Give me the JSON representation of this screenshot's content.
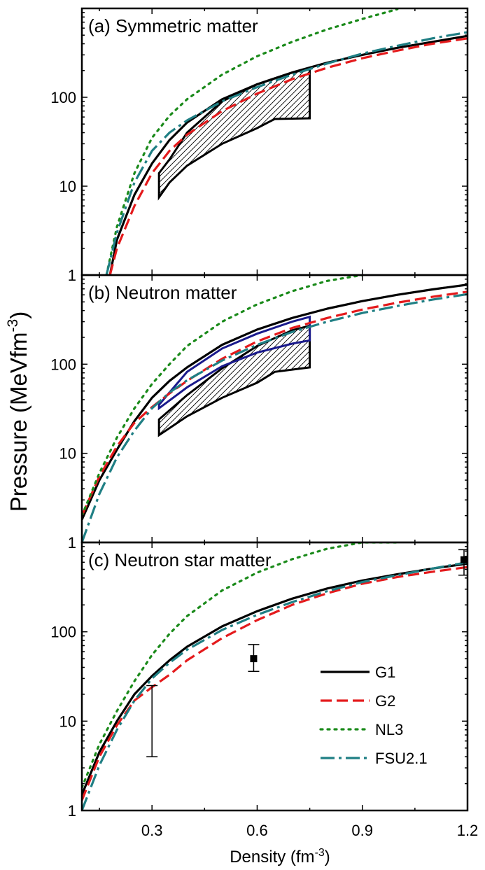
{
  "ylabel": "Pressure (MeVfm",
  "ylabel_sup": "-3",
  "ylabel_close": ")",
  "xlabel": "Density (fm",
  "xlabel_sup": "-3",
  "xlabel_close": ")",
  "legend": [
    "G1",
    "G2",
    "NL3",
    "FSU2.1"
  ],
  "colors": {
    "G1": "#000000",
    "G2": "#e41a1c",
    "NL3": "#1a8a1a",
    "FSU2.1": "#1f7f84",
    "constraint_blue": "#1a1a8c"
  },
  "chart_data": [
    {
      "type": "line",
      "title": "(a) Symmetric matter",
      "xlim": [
        0.1,
        1.2
      ],
      "ylim": [
        1,
        1000
      ],
      "yscale": "log",
      "xticks": [
        "0.3",
        "0.6",
        "0.9",
        "1.2"
      ],
      "yticks": [
        "1",
        "10",
        "100"
      ],
      "series": [
        {
          "name": "G1",
          "x": [
            0.18,
            0.2,
            0.25,
            0.3,
            0.35,
            0.4,
            0.5,
            0.6,
            0.7,
            0.8,
            0.9,
            1.0,
            1.1,
            1.2
          ],
          "y": [
            1,
            2.5,
            8,
            18,
            33,
            52,
            95,
            140,
            190,
            245,
            300,
            360,
            420,
            490
          ]
        },
        {
          "name": "G2",
          "x": [
            0.18,
            0.2,
            0.25,
            0.3,
            0.35,
            0.4,
            0.5,
            0.6,
            0.7,
            0.8,
            0.9,
            1.0,
            1.1,
            1.2
          ],
          "y": [
            1,
            2,
            6,
            14,
            25,
            38,
            70,
            110,
            160,
            215,
            275,
            335,
            400,
            460
          ]
        },
        {
          "name": "NL3",
          "x": [
            0.17,
            0.2,
            0.25,
            0.3,
            0.35,
            0.4,
            0.5,
            0.6,
            0.7,
            0.8,
            0.9,
            1.0
          ],
          "y": [
            1,
            3.5,
            14,
            35,
            62,
            95,
            180,
            290,
            420,
            580,
            760,
            980
          ]
        },
        {
          "name": "FSU2.1",
          "x": [
            0.17,
            0.2,
            0.25,
            0.3,
            0.35,
            0.4,
            0.5,
            0.6,
            0.7,
            0.8,
            0.9,
            1.0,
            1.1,
            1.2
          ],
          "y": [
            1,
            3,
            11,
            25,
            40,
            55,
            90,
            130,
            180,
            240,
            310,
            380,
            460,
            540
          ]
        }
      ],
      "constraint_region": {
        "upper": {
          "x": [
            0.32,
            0.35,
            0.4,
            0.5,
            0.6,
            0.7,
            0.75
          ],
          "y": [
            14,
            20,
            40,
            90,
            140,
            190,
            210
          ]
        },
        "lower": {
          "x": [
            0.32,
            0.35,
            0.4,
            0.5,
            0.6,
            0.65,
            0.75
          ],
          "y": [
            7.5,
            11,
            17,
            30,
            45,
            57,
            58
          ]
        }
      }
    },
    {
      "type": "line",
      "title": "(b) Neutron matter",
      "xlim": [
        0.1,
        1.2
      ],
      "ylim": [
        1,
        1000
      ],
      "yscale": "log",
      "xticks": [
        "0.3",
        "0.6",
        "0.9",
        "1.2"
      ],
      "yticks": [
        "1",
        "10",
        "100"
      ],
      "series": [
        {
          "name": "G1",
          "x": [
            0.1,
            0.15,
            0.2,
            0.25,
            0.3,
            0.35,
            0.4,
            0.5,
            0.6,
            0.7,
            0.8,
            0.9,
            1.0,
            1.1,
            1.2
          ],
          "y": [
            1.8,
            5,
            11,
            23,
            42,
            65,
            92,
            165,
            245,
            330,
            420,
            510,
            600,
            690,
            780
          ]
        },
        {
          "name": "G2",
          "x": [
            0.1,
            0.15,
            0.2,
            0.25,
            0.3,
            0.35,
            0.4,
            0.5,
            0.6,
            0.7,
            0.8,
            0.9,
            1.0,
            1.1,
            1.2
          ],
          "y": [
            2,
            5.5,
            12,
            22,
            33,
            47,
            65,
            115,
            180,
            255,
            330,
            410,
            490,
            570,
            650
          ]
        },
        {
          "name": "NL3",
          "x": [
            0.1,
            0.15,
            0.2,
            0.25,
            0.3,
            0.35,
            0.4,
            0.5,
            0.6,
            0.7,
            0.8,
            0.9
          ],
          "y": [
            2,
            6,
            15,
            32,
            60,
            100,
            160,
            300,
            470,
            660,
            860,
            1000
          ]
        },
        {
          "name": "FSU2.1",
          "x": [
            0.1,
            0.15,
            0.2,
            0.25,
            0.3,
            0.35,
            0.4,
            0.5,
            0.6,
            0.7,
            0.8,
            0.9,
            1.0,
            1.1,
            1.2
          ],
          "y": [
            1,
            3.5,
            9,
            18,
            32,
            48,
            66,
            110,
            165,
            230,
            300,
            375,
            450,
            530,
            610
          ]
        }
      ],
      "constraint_region": {
        "upper": {
          "x": [
            0.32,
            0.4,
            0.5,
            0.6,
            0.7,
            0.75
          ],
          "y": [
            24,
            45,
            90,
            160,
            240,
            270
          ]
        },
        "lower": {
          "x": [
            0.32,
            0.4,
            0.5,
            0.6,
            0.65,
            0.75
          ],
          "y": [
            16,
            26,
            42,
            62,
            82,
            92
          ]
        }
      },
      "constraint_region_blue": {
        "upper": {
          "x": [
            0.32,
            0.4,
            0.5,
            0.6,
            0.7,
            0.75
          ],
          "y": [
            35,
            82,
            150,
            220,
            300,
            340
          ]
        },
        "lower": {
          "x": [
            0.32,
            0.4,
            0.5,
            0.6,
            0.7,
            0.75
          ],
          "y": [
            32,
            55,
            95,
            135,
            170,
            185
          ]
        }
      }
    },
    {
      "type": "line",
      "title": "(c) Neutron star matter",
      "xlim": [
        0.1,
        1.2
      ],
      "ylim": [
        1,
        1000
      ],
      "yscale": "log",
      "xticks": [
        "0.3",
        "0.6",
        "0.9",
        "1.2"
      ],
      "yticks": [
        "1",
        "10",
        "100"
      ],
      "xlabel": "Density (fm-3)",
      "series": [
        {
          "name": "G1",
          "x": [
            0.1,
            0.15,
            0.2,
            0.25,
            0.3,
            0.35,
            0.4,
            0.5,
            0.6,
            0.7,
            0.8,
            0.9,
            1.0,
            1.1,
            1.2
          ],
          "y": [
            1.5,
            4.5,
            10,
            20,
            32,
            48,
            68,
            115,
            170,
            235,
            305,
            375,
            440,
            510,
            580
          ]
        },
        {
          "name": "G2",
          "x": [
            0.1,
            0.15,
            0.2,
            0.25,
            0.3,
            0.35,
            0.4,
            0.5,
            0.6,
            0.7,
            0.8,
            0.9,
            1.0,
            1.1,
            1.2
          ],
          "y": [
            1.3,
            4,
            9,
            17,
            24,
            33,
            48,
            85,
            135,
            200,
            270,
            345,
            410,
            470,
            530
          ]
        },
        {
          "name": "NL3",
          "x": [
            0.1,
            0.15,
            0.2,
            0.25,
            0.3,
            0.35,
            0.4,
            0.5,
            0.6,
            0.7,
            0.8,
            0.9,
            1.0
          ],
          "y": [
            1.8,
            5.5,
            13,
            28,
            55,
            95,
            150,
            290,
            460,
            650,
            850,
            1000,
            1000
          ]
        },
        {
          "name": "FSU2.1",
          "x": [
            0.1,
            0.15,
            0.2,
            0.25,
            0.3,
            0.35,
            0.4,
            0.5,
            0.6,
            0.7,
            0.8,
            0.9,
            1.0,
            1.1,
            1.2
          ],
          "y": [
            1,
            3.2,
            8,
            17,
            30,
            45,
            63,
            105,
            155,
            215,
            285,
            360,
            430,
            510,
            600
          ]
        }
      ],
      "error_bars": [
        {
          "x": 0.3,
          "y_low": 4,
          "y_high": 25
        },
        {
          "x": 0.59,
          "y": 50,
          "y_low": 36,
          "y_high": 72
        },
        {
          "x": 1.19,
          "y": 640,
          "y_low": 430,
          "y_high": 830
        }
      ]
    }
  ]
}
